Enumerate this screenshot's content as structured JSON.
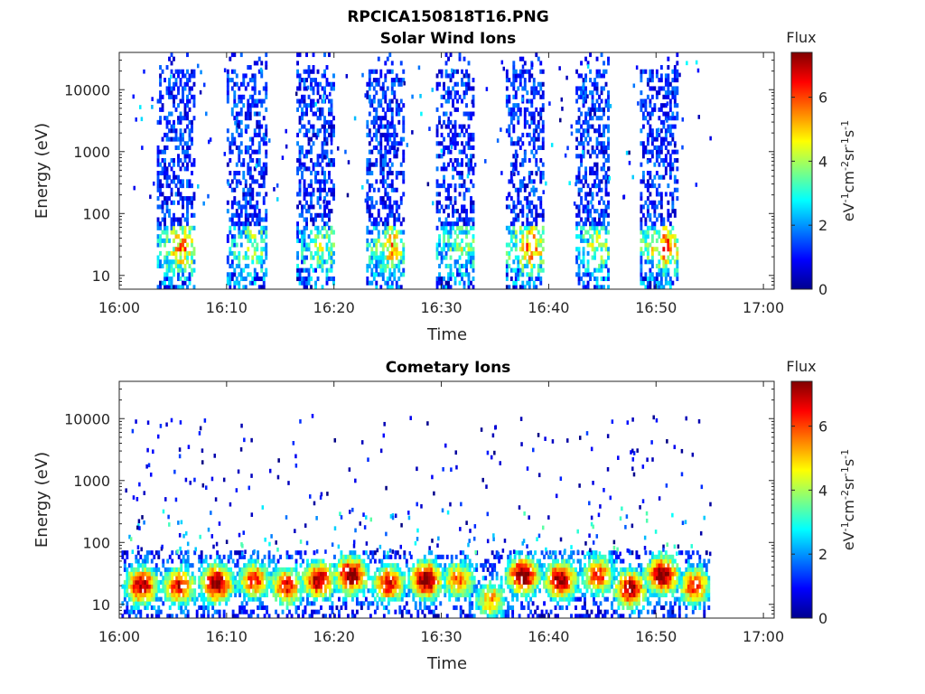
{
  "figure_title": "RPCICA150818T16.PNG",
  "chart_data": [
    {
      "type": "heatmap",
      "title": "Solar Wind Ions",
      "xlabel": "Time",
      "ylabel": "Energy (eV)",
      "x_ticks": [
        "16:00",
        "16:10",
        "16:20",
        "16:30",
        "16:40",
        "16:50",
        "17:00"
      ],
      "xlim_minutes": [
        0,
        61
      ],
      "y_scale": "log",
      "y_ticks": [
        "10",
        "100",
        "1000",
        "10000"
      ],
      "ylim": [
        6,
        40000
      ],
      "colorbar": {
        "label": "Flux",
        "unit": "eV-1cm-2sr-1s-1",
        "ticks": [
          "0",
          "2",
          "4",
          "6"
        ],
        "range": [
          0,
          7.4
        ],
        "colormap": "jet"
      },
      "data_end_minute": 55,
      "bursts": [
        {
          "start_min": 3.5,
          "end_min": 7.0,
          "peak_energy_eV": 30,
          "peak_flux": 4.5
        },
        {
          "start_min": 10.0,
          "end_min": 13.7,
          "peak_energy_eV": 30,
          "peak_flux": 3.0
        },
        {
          "start_min": 16.5,
          "end_min": 20.0,
          "peak_energy_eV": 30,
          "peak_flux": 3.0
        },
        {
          "start_min": 23.0,
          "end_min": 26.5,
          "peak_energy_eV": 30,
          "peak_flux": 4.0
        },
        {
          "start_min": 29.5,
          "end_min": 33.0,
          "peak_energy_eV": 30,
          "peak_flux": 3.0
        },
        {
          "start_min": 36.0,
          "end_min": 39.5,
          "peak_energy_eV": 30,
          "peak_flux": 4.8
        },
        {
          "start_min": 42.5,
          "end_min": 45.5,
          "peak_energy_eV": 30,
          "peak_flux": 3.0
        },
        {
          "start_min": 48.5,
          "end_min": 52.0,
          "peak_energy_eV": 30,
          "peak_flux": 5.0
        }
      ]
    },
    {
      "type": "heatmap",
      "title": "Cometary Ions",
      "xlabel": "Time",
      "ylabel": "Energy (eV)",
      "x_ticks": [
        "16:00",
        "16:10",
        "16:20",
        "16:30",
        "16:40",
        "16:50",
        "17:00"
      ],
      "xlim_minutes": [
        0,
        61
      ],
      "y_scale": "log",
      "y_ticks": [
        "10",
        "100",
        "1000",
        "10000"
      ],
      "ylim": [
        6,
        40000
      ],
      "colorbar": {
        "label": "Flux",
        "unit": "eV-1cm-2sr-1s-1",
        "ticks": [
          "0",
          "2",
          "4",
          "6"
        ],
        "range": [
          0,
          7.4
        ],
        "colormap": "jet"
      },
      "data_end_minute": 55,
      "bursts": [
        {
          "center_min": 2.0,
          "peak_energy_eV": 20,
          "peak_flux": 6.5
        },
        {
          "center_min": 5.5,
          "peak_energy_eV": 20,
          "peak_flux": 6.0
        },
        {
          "center_min": 9.0,
          "peak_energy_eV": 22,
          "peak_flux": 7.0
        },
        {
          "center_min": 12.5,
          "peak_energy_eV": 25,
          "peak_flux": 5.5
        },
        {
          "center_min": 15.5,
          "peak_energy_eV": 20,
          "peak_flux": 5.8
        },
        {
          "center_min": 18.5,
          "peak_energy_eV": 25,
          "peak_flux": 6.5
        },
        {
          "center_min": 21.5,
          "peak_energy_eV": 30,
          "peak_flux": 7.0
        },
        {
          "center_min": 25.0,
          "peak_energy_eV": 22,
          "peak_flux": 6.0
        },
        {
          "center_min": 28.5,
          "peak_energy_eV": 25,
          "peak_flux": 7.0
        },
        {
          "center_min": 31.5,
          "peak_energy_eV": 25,
          "peak_flux": 5.0
        },
        {
          "center_min": 34.5,
          "peak_energy_eV": 12,
          "peak_flux": 4.5
        },
        {
          "center_min": 37.5,
          "peak_energy_eV": 30,
          "peak_flux": 7.0
        },
        {
          "center_min": 41.0,
          "peak_energy_eV": 25,
          "peak_flux": 6.8
        },
        {
          "center_min": 44.5,
          "peak_energy_eV": 30,
          "peak_flux": 5.5
        },
        {
          "center_min": 47.5,
          "peak_energy_eV": 18,
          "peak_flux": 6.5
        },
        {
          "center_min": 50.5,
          "peak_energy_eV": 30,
          "peak_flux": 7.0
        },
        {
          "center_min": 53.5,
          "peak_energy_eV": 20,
          "peak_flux": 5.5
        }
      ]
    }
  ]
}
